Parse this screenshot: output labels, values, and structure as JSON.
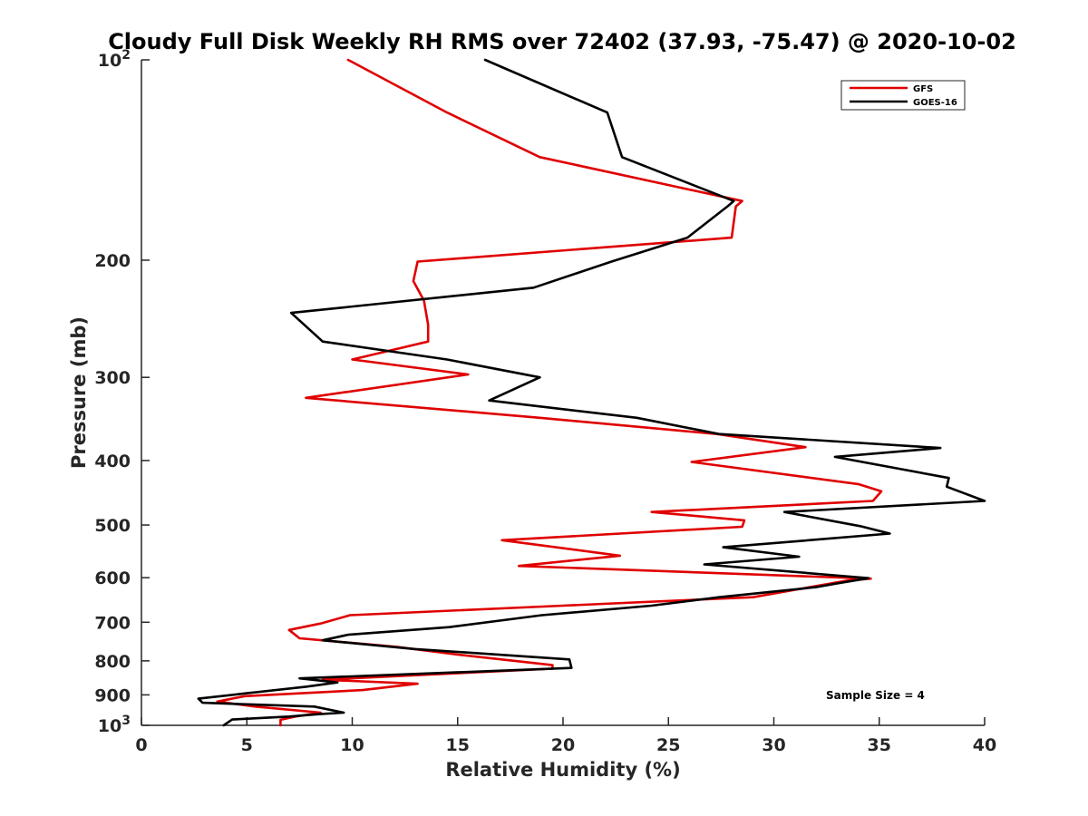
{
  "chart_data": {
    "type": "line",
    "title": "Cloudy Full Disk Weekly RH RMS over 72402 (37.93, -75.47) @ 2020-10-02",
    "xlabel": "Relative Humidity (%)",
    "ylabel": "Pressure (mb)",
    "xlim": [
      0,
      40
    ],
    "ylim": [
      100,
      1000
    ],
    "yscale": "log",
    "y_reversed": true,
    "x_ticks": [
      "0",
      "5",
      "10",
      "15",
      "20",
      "25",
      "30",
      "35",
      "40"
    ],
    "y_ticks": [
      {
        "value": 100,
        "label": "10",
        "sup": "2"
      },
      {
        "value": 200,
        "label": "200",
        "sup": ""
      },
      {
        "value": 300,
        "label": "300",
        "sup": ""
      },
      {
        "value": 400,
        "label": "400",
        "sup": ""
      },
      {
        "value": 500,
        "label": "500",
        "sup": ""
      },
      {
        "value": 600,
        "label": "600",
        "sup": ""
      },
      {
        "value": 700,
        "label": "700",
        "sup": ""
      },
      {
        "value": 800,
        "label": "800",
        "sup": ""
      },
      {
        "value": 900,
        "label": "900",
        "sup": ""
      },
      {
        "value": 1000,
        "label": "10",
        "sup": "3"
      }
    ],
    "legend_position": "top-right",
    "annotation": "Sample Size = 4",
    "series": [
      {
        "name": "GFS",
        "color": "#e00000",
        "points": [
          [
            9.8,
            100
          ],
          [
            14.5,
            120
          ],
          [
            18.9,
            140
          ],
          [
            28.5,
            163
          ],
          [
            28.2,
            166
          ],
          [
            28.0,
            185
          ],
          [
            13.1,
            201
          ],
          [
            12.9,
            215
          ],
          [
            13.4,
            230
          ],
          [
            13.6,
            250
          ],
          [
            13.6,
            265
          ],
          [
            10.0,
            282
          ],
          [
            15.5,
            297
          ],
          [
            7.8,
            322
          ],
          [
            18.9,
            345
          ],
          [
            27.3,
            365
          ],
          [
            31.5,
            382
          ],
          [
            26.1,
            402
          ],
          [
            34.0,
            434
          ],
          [
            35.1,
            445
          ],
          [
            34.7,
            460
          ],
          [
            24.2,
            478
          ],
          [
            28.6,
            492
          ],
          [
            28.5,
            503
          ],
          [
            17.1,
            527
          ],
          [
            22.7,
            556
          ],
          [
            17.9,
            576
          ],
          [
            34.6,
            602
          ],
          [
            33.5,
            606
          ],
          [
            29.0,
            642
          ],
          [
            20.0,
            661
          ],
          [
            9.9,
            683
          ],
          [
            8.5,
            703
          ],
          [
            7.0,
            719
          ],
          [
            7.5,
            740
          ],
          [
            12.1,
            762
          ],
          [
            15.0,
            783
          ],
          [
            19.5,
            812
          ],
          [
            19.5,
            822
          ],
          [
            8.6,
            854
          ],
          [
            13.1,
            866
          ],
          [
            10.5,
            885
          ],
          [
            4.9,
            904
          ],
          [
            3.6,
            921
          ],
          [
            5.4,
            937
          ],
          [
            8.5,
            957
          ],
          [
            7.3,
            970
          ],
          [
            6.6,
            981
          ],
          [
            6.6,
            1000
          ]
        ]
      },
      {
        "name": "GOES-16",
        "color": "#000000",
        "points": [
          [
            16.3,
            100
          ],
          [
            22.1,
            120
          ],
          [
            22.8,
            140
          ],
          [
            28.1,
            163
          ],
          [
            27.8,
            166
          ],
          [
            25.9,
            185
          ],
          [
            22.3,
            201
          ],
          [
            18.6,
            220
          ],
          [
            7.1,
            240
          ],
          [
            8.6,
            265
          ],
          [
            14.5,
            282
          ],
          [
            18.9,
            300
          ],
          [
            16.5,
            325
          ],
          [
            23.5,
            345
          ],
          [
            27.4,
            365
          ],
          [
            37.9,
            383
          ],
          [
            32.9,
            395
          ],
          [
            38.3,
            425
          ],
          [
            38.2,
            438
          ],
          [
            40.0,
            460
          ],
          [
            30.5,
            478
          ],
          [
            34.1,
            502
          ],
          [
            35.5,
            515
          ],
          [
            27.6,
            540
          ],
          [
            31.2,
            558
          ],
          [
            26.7,
            573
          ],
          [
            34.5,
            601
          ],
          [
            33.0,
            612
          ],
          [
            32.0,
            620
          ],
          [
            27.4,
            642
          ],
          [
            24.2,
            661
          ],
          [
            19.0,
            683
          ],
          [
            14.6,
            712
          ],
          [
            9.8,
            731
          ],
          [
            8.6,
            745
          ],
          [
            13.0,
            768
          ],
          [
            20.3,
            796
          ],
          [
            20.4,
            820
          ],
          [
            7.5,
            850
          ],
          [
            9.3,
            862
          ],
          [
            7.8,
            875
          ],
          [
            5.0,
            895
          ],
          [
            2.7,
            912
          ],
          [
            2.9,
            925
          ],
          [
            8.2,
            937
          ],
          [
            9.6,
            957
          ],
          [
            8.4,
            962
          ],
          [
            7.0,
            970
          ],
          [
            4.3,
            980
          ],
          [
            3.9,
            1000
          ]
        ]
      }
    ]
  }
}
